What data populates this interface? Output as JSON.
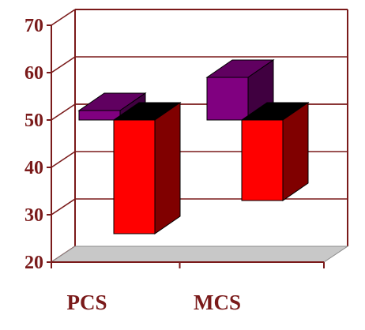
{
  "chart_data": {
    "type": "bar",
    "style": "3d-floating",
    "baseline": 50,
    "ylim": [
      20,
      70
    ],
    "yticks": [
      "20",
      "30",
      "40",
      "50",
      "60",
      "70"
    ],
    "categories": [
      "PCS",
      "MCS"
    ],
    "series": [
      {
        "values": [
          52,
          59
        ],
        "color": "#800080"
      },
      {
        "values": [
          26,
          33
        ],
        "color": "#ff0000"
      }
    ],
    "grid": true,
    "colors": {
      "axis": "#7a1a1a",
      "floor": "#c8c8c8",
      "tick_text": "#7a1a1a"
    }
  }
}
